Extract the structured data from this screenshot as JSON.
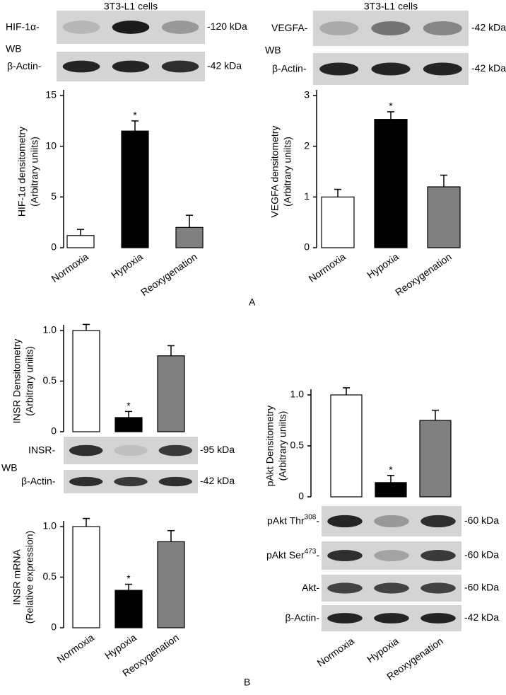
{
  "chart_data": [
    {
      "type": "bar",
      "y_label": [
        "HIF-1α densitometry",
        "(Arbitrary uniits)"
      ],
      "categories": [
        "Normoxia",
        "Hypoxia",
        "Reoxygenation"
      ],
      "values": [
        1.2,
        11.5,
        2.0
      ],
      "errors": [
        0.6,
        1.0,
        1.2
      ],
      "markers": [
        null,
        "*",
        null
      ],
      "colors": [
        "#ffffff",
        "#000000",
        "#808080"
      ],
      "ylim": [
        0,
        15
      ],
      "yticks": [
        0,
        5,
        10,
        15
      ]
    },
    {
      "type": "bar",
      "y_label": [
        "VEGFA densitometry",
        "(Arbitrary uniits)"
      ],
      "categories": [
        "Normoxia",
        "Hypoxia",
        "Reoxygenation"
      ],
      "values": [
        1.0,
        2.53,
        1.2
      ],
      "errors": [
        0.15,
        0.15,
        0.23
      ],
      "markers": [
        null,
        "*",
        null
      ],
      "colors": [
        "#ffffff",
        "#000000",
        "#808080"
      ],
      "ylim": [
        0,
        3
      ],
      "yticks": [
        0,
        1,
        2,
        3
      ]
    },
    {
      "type": "bar",
      "y_label": [
        "INSR Densitometry",
        "(Arbitrary uniits)"
      ],
      "categories": [
        null,
        null,
        null
      ],
      "values": [
        1.0,
        0.14,
        0.75
      ],
      "errors": [
        0.06,
        0.06,
        0.1
      ],
      "markers": [
        null,
        "*",
        null
      ],
      "colors": [
        "#ffffff",
        "#000000",
        "#808080"
      ],
      "ylim": [
        0,
        1
      ],
      "yticks": [
        0,
        0.5,
        {
          "value": 1,
          "label": "1.0"
        }
      ]
    },
    {
      "type": "bar",
      "y_label": [
        "INSR mRNA",
        "(Relative expression)"
      ],
      "categories": [
        "Normoxia",
        "Hypoxia",
        "Reoxygenation"
      ],
      "values": [
        1.0,
        0.37,
        0.85
      ],
      "errors": [
        0.08,
        0.06,
        0.11
      ],
      "markers": [
        null,
        "*",
        null
      ],
      "colors": [
        "#ffffff",
        "#000000",
        "#808080"
      ],
      "ylim": [
        0,
        1
      ],
      "yticks": [
        0,
        0.5,
        {
          "value": 1,
          "label": "1.0"
        }
      ]
    },
    {
      "type": "bar",
      "y_label": [
        "pAkt Densitometry",
        "(Arbitrary uniits)"
      ],
      "categories": [
        "Normoxia",
        "Hypoxia",
        "Reoxygenation"
      ],
      "values": [
        1.0,
        0.14,
        0.75
      ],
      "errors": [
        0.07,
        0.07,
        0.1
      ],
      "markers": [
        null,
        "*",
        null
      ],
      "colors": [
        "#ffffff",
        "#000000",
        "#808080"
      ],
      "ylim": [
        0,
        1
      ],
      "yticks": [
        0,
        0.5,
        {
          "value": 1,
          "label": "1.0"
        }
      ]
    }
  ],
  "blots": [
    {
      "header": "3T3-L1 cells",
      "wb": "WB",
      "rows": [
        {
          "label_parts": [
            "HIF-1α-"
          ],
          "kda": "-120 kDa"
        },
        {
          "label_parts": [
            "β-Actin-"
          ],
          "kda": "-42 kDa"
        }
      ]
    },
    {
      "header": "3T3-L1 cells",
      "wb": "WB",
      "rows": [
        {
          "label_parts": [
            "VEGFA-"
          ],
          "kda": "-42 kDa"
        },
        {
          "label_parts": [
            "β-Actin-"
          ],
          "kda": "-42 kDa"
        }
      ]
    },
    {
      "wb": "WB",
      "rows": [
        {
          "label_parts": [
            "INSR-"
          ],
          "kda": "-95 kDa"
        },
        {
          "label_parts": [
            "β-Actin-"
          ],
          "kda": "-42 kDa"
        }
      ]
    },
    {
      "rows": [
        {
          "label_parts": [
            "pAkt Thr",
            "308",
            "-"
          ],
          "kda": "-60 kDa"
        },
        {
          "label_parts": [
            "pAkt Ser",
            "473",
            "-"
          ],
          "kda": "-60 kDa"
        },
        {
          "label_parts": [
            "Akt-"
          ],
          "kda": "-60 kDa"
        },
        {
          "label_parts": [
            "β-Actin-"
          ],
          "kda": "-42 kDa"
        }
      ]
    }
  ],
  "panels": [
    "A",
    "B"
  ]
}
